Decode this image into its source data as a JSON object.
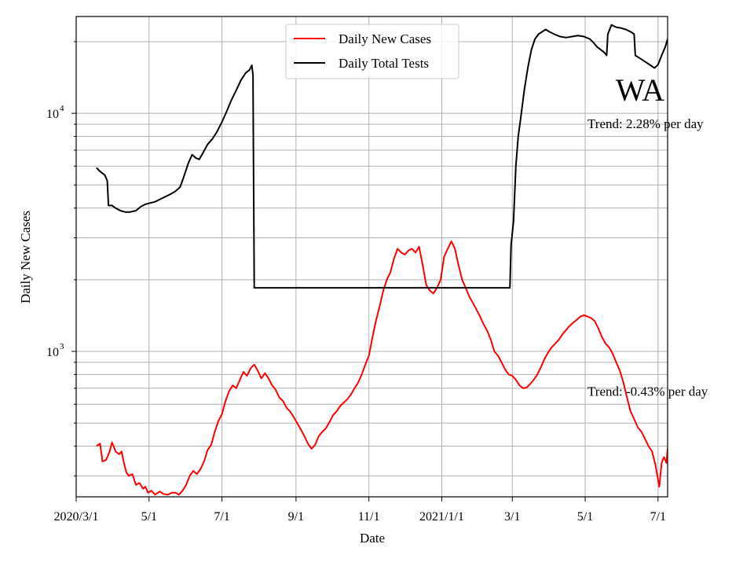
{
  "chart_data": {
    "type": "line",
    "title": "",
    "region_label": "WA",
    "xlabel": "Date",
    "ylabel": "Daily New Cases",
    "y_scale": "log",
    "ylim": [
      245,
      25500
    ],
    "x_range_days": [
      0,
      495
    ],
    "x_ticks": [
      {
        "day": 0,
        "label": "2020/3/1"
      },
      {
        "day": 61,
        "label": "5/1"
      },
      {
        "day": 122,
        "label": "7/1"
      },
      {
        "day": 184,
        "label": "9/1"
      },
      {
        "day": 245,
        "label": "11/1"
      },
      {
        "day": 306,
        "label": "2021/1/1"
      },
      {
        "day": 365,
        "label": "3/1"
      },
      {
        "day": 426,
        "label": "5/1"
      },
      {
        "day": 487,
        "label": "7/1"
      }
    ],
    "y_major_ticks": [
      {
        "value": 1000,
        "base": "10",
        "exp": "3"
      },
      {
        "value": 10000,
        "base": "10",
        "exp": "4"
      }
    ],
    "y_minor_ticks": [
      300,
      400,
      500,
      600,
      700,
      800,
      900,
      2000,
      3000,
      4000,
      5000,
      6000,
      7000,
      8000,
      9000,
      20000
    ],
    "grid": true,
    "legend_position": "top-center",
    "series": [
      {
        "name": "Daily New Cases",
        "color": "#ff0000",
        "points": [
          [
            17,
            400
          ],
          [
            20,
            410
          ],
          [
            22,
            345
          ],
          [
            25,
            350
          ],
          [
            28,
            380
          ],
          [
            30,
            415
          ],
          [
            33,
            380
          ],
          [
            36,
            370
          ],
          [
            38,
            380
          ],
          [
            40,
            340
          ],
          [
            42,
            310
          ],
          [
            44,
            300
          ],
          [
            47,
            305
          ],
          [
            50,
            275
          ],
          [
            53,
            280
          ],
          [
            56,
            265
          ],
          [
            58,
            270
          ],
          [
            60,
            255
          ],
          [
            63,
            260
          ],
          [
            66,
            250
          ],
          [
            70,
            258
          ],
          [
            73,
            252
          ],
          [
            77,
            250
          ],
          [
            80,
            255
          ],
          [
            83,
            255
          ],
          [
            86,
            250
          ],
          [
            89,
            260
          ],
          [
            92,
            275
          ],
          [
            95,
            300
          ],
          [
            98,
            315
          ],
          [
            101,
            305
          ],
          [
            104,
            320
          ],
          [
            107,
            345
          ],
          [
            110,
            385
          ],
          [
            113,
            405
          ],
          [
            116,
            460
          ],
          [
            119,
            510
          ],
          [
            122,
            545
          ],
          [
            125,
            620
          ],
          [
            128,
            680
          ],
          [
            131,
            720
          ],
          [
            134,
            700
          ],
          [
            137,
            760
          ],
          [
            140,
            820
          ],
          [
            143,
            790
          ],
          [
            146,
            850
          ],
          [
            149,
            880
          ],
          [
            152,
            830
          ],
          [
            155,
            770
          ],
          [
            158,
            810
          ],
          [
            161,
            770
          ],
          [
            164,
            720
          ],
          [
            167,
            690
          ],
          [
            170,
            640
          ],
          [
            173,
            620
          ],
          [
            176,
            580
          ],
          [
            179,
            560
          ],
          [
            182,
            530
          ],
          [
            185,
            500
          ],
          [
            188,
            470
          ],
          [
            191,
            440
          ],
          [
            194,
            410
          ],
          [
            197,
            390
          ],
          [
            200,
            405
          ],
          [
            203,
            440
          ],
          [
            206,
            460
          ],
          [
            209,
            475
          ],
          [
            212,
            505
          ],
          [
            215,
            540
          ],
          [
            218,
            560
          ],
          [
            221,
            590
          ],
          [
            224,
            610
          ],
          [
            227,
            630
          ],
          [
            230,
            660
          ],
          [
            233,
            700
          ],
          [
            236,
            740
          ],
          [
            239,
            800
          ],
          [
            242,
            880
          ],
          [
            245,
            960
          ],
          [
            248,
            1150
          ],
          [
            251,
            1350
          ],
          [
            254,
            1550
          ],
          [
            257,
            1800
          ],
          [
            260,
            2000
          ],
          [
            263,
            2150
          ],
          [
            266,
            2450
          ],
          [
            269,
            2700
          ],
          [
            272,
            2600
          ],
          [
            275,
            2550
          ],
          [
            278,
            2650
          ],
          [
            281,
            2700
          ],
          [
            284,
            2600
          ],
          [
            287,
            2750
          ],
          [
            290,
            2300
          ],
          [
            293,
            1900
          ],
          [
            296,
            1800
          ],
          [
            299,
            1750
          ],
          [
            302,
            1850
          ],
          [
            305,
            2000
          ],
          [
            308,
            2500
          ],
          [
            311,
            2700
          ],
          [
            314,
            2900
          ],
          [
            317,
            2700
          ],
          [
            320,
            2300
          ],
          [
            323,
            2000
          ],
          [
            326,
            1850
          ],
          [
            329,
            1700
          ],
          [
            332,
            1600
          ],
          [
            335,
            1500
          ],
          [
            338,
            1400
          ],
          [
            341,
            1300
          ],
          [
            344,
            1220
          ],
          [
            347,
            1120
          ],
          [
            350,
            1000
          ],
          [
            353,
            960
          ],
          [
            356,
            900
          ],
          [
            359,
            840
          ],
          [
            362,
            800
          ],
          [
            365,
            790
          ],
          [
            368,
            760
          ],
          [
            371,
            720
          ],
          [
            374,
            700
          ],
          [
            377,
            705
          ],
          [
            380,
            730
          ],
          [
            383,
            760
          ],
          [
            386,
            800
          ],
          [
            389,
            860
          ],
          [
            392,
            930
          ],
          [
            395,
            990
          ],
          [
            398,
            1040
          ],
          [
            401,
            1080
          ],
          [
            404,
            1120
          ],
          [
            407,
            1180
          ],
          [
            410,
            1230
          ],
          [
            413,
            1280
          ],
          [
            416,
            1320
          ],
          [
            419,
            1360
          ],
          [
            422,
            1400
          ],
          [
            425,
            1420
          ],
          [
            428,
            1400
          ],
          [
            431,
            1380
          ],
          [
            434,
            1340
          ],
          [
            437,
            1250
          ],
          [
            440,
            1150
          ],
          [
            443,
            1080
          ],
          [
            446,
            1040
          ],
          [
            449,
            980
          ],
          [
            452,
            900
          ],
          [
            455,
            830
          ],
          [
            458,
            740
          ],
          [
            461,
            640
          ],
          [
            464,
            560
          ],
          [
            467,
            520
          ],
          [
            470,
            480
          ],
          [
            473,
            460
          ],
          [
            476,
            430
          ],
          [
            479,
            400
          ],
          [
            482,
            380
          ],
          [
            485,
            330
          ],
          [
            488,
            270
          ],
          [
            490,
            340
          ],
          [
            492,
            360
          ],
          [
            494,
            340
          ],
          [
            495,
            390
          ]
        ]
      },
      {
        "name": "Daily Total Tests",
        "color": "#000000",
        "points": [
          [
            17,
            5900
          ],
          [
            20,
            5700
          ],
          [
            24,
            5500
          ],
          [
            26,
            5200
          ],
          [
            27,
            4100
          ],
          [
            30,
            4100
          ],
          [
            33,
            4000
          ],
          [
            37,
            3900
          ],
          [
            41,
            3850
          ],
          [
            45,
            3850
          ],
          [
            50,
            3900
          ],
          [
            54,
            4050
          ],
          [
            58,
            4150
          ],
          [
            62,
            4200
          ],
          [
            66,
            4250
          ],
          [
            70,
            4350
          ],
          [
            74,
            4450
          ],
          [
            78,
            4550
          ],
          [
            83,
            4700
          ],
          [
            87,
            4900
          ],
          [
            90,
            5400
          ],
          [
            94,
            6200
          ],
          [
            97,
            6700
          ],
          [
            100,
            6500
          ],
          [
            103,
            6400
          ],
          [
            106,
            6800
          ],
          [
            110,
            7400
          ],
          [
            114,
            7800
          ],
          [
            118,
            8400
          ],
          [
            122,
            9200
          ],
          [
            126,
            10200
          ],
          [
            130,
            11400
          ],
          [
            134,
            12500
          ],
          [
            138,
            13800
          ],
          [
            142,
            14800
          ],
          [
            145,
            15200
          ],
          [
            147,
            15900
          ],
          [
            148,
            14500
          ],
          [
            149,
            1850
          ],
          [
            150,
            1850
          ],
          [
            200,
            1850
          ],
          [
            250,
            1850
          ],
          [
            300,
            1850
          ],
          [
            350,
            1850
          ],
          [
            363,
            1850
          ],
          [
            364,
            2800
          ],
          [
            366,
            3500
          ],
          [
            368,
            6000
          ],
          [
            370,
            8000
          ],
          [
            372,
            9500
          ],
          [
            375,
            12500
          ],
          [
            378,
            15500
          ],
          [
            381,
            18500
          ],
          [
            384,
            20500
          ],
          [
            387,
            21500
          ],
          [
            390,
            22000
          ],
          [
            393,
            22500
          ],
          [
            396,
            22000
          ],
          [
            400,
            21500
          ],
          [
            405,
            21000
          ],
          [
            410,
            20800
          ],
          [
            415,
            21000
          ],
          [
            420,
            21200
          ],
          [
            425,
            21000
          ],
          [
            430,
            20500
          ],
          [
            433,
            19800
          ],
          [
            436,
            19000
          ],
          [
            439,
            18500
          ],
          [
            442,
            18000
          ],
          [
            444,
            17500
          ],
          [
            445,
            21500
          ],
          [
            448,
            23500
          ],
          [
            452,
            23000
          ],
          [
            456,
            22800
          ],
          [
            460,
            22500
          ],
          [
            464,
            22000
          ],
          [
            467,
            21500
          ],
          [
            468,
            17500
          ],
          [
            472,
            17000
          ],
          [
            476,
            16500
          ],
          [
            480,
            16000
          ],
          [
            484,
            15500
          ],
          [
            487,
            16000
          ],
          [
            490,
            17500
          ],
          [
            493,
            19000
          ],
          [
            495,
            20500
          ]
        ]
      }
    ],
    "annotations": [
      {
        "text": "Trend: 2.28% per day",
        "anchor_value": 8800
      },
      {
        "text": "Trend: -0.43% per day",
        "anchor_value": 660
      }
    ]
  }
}
